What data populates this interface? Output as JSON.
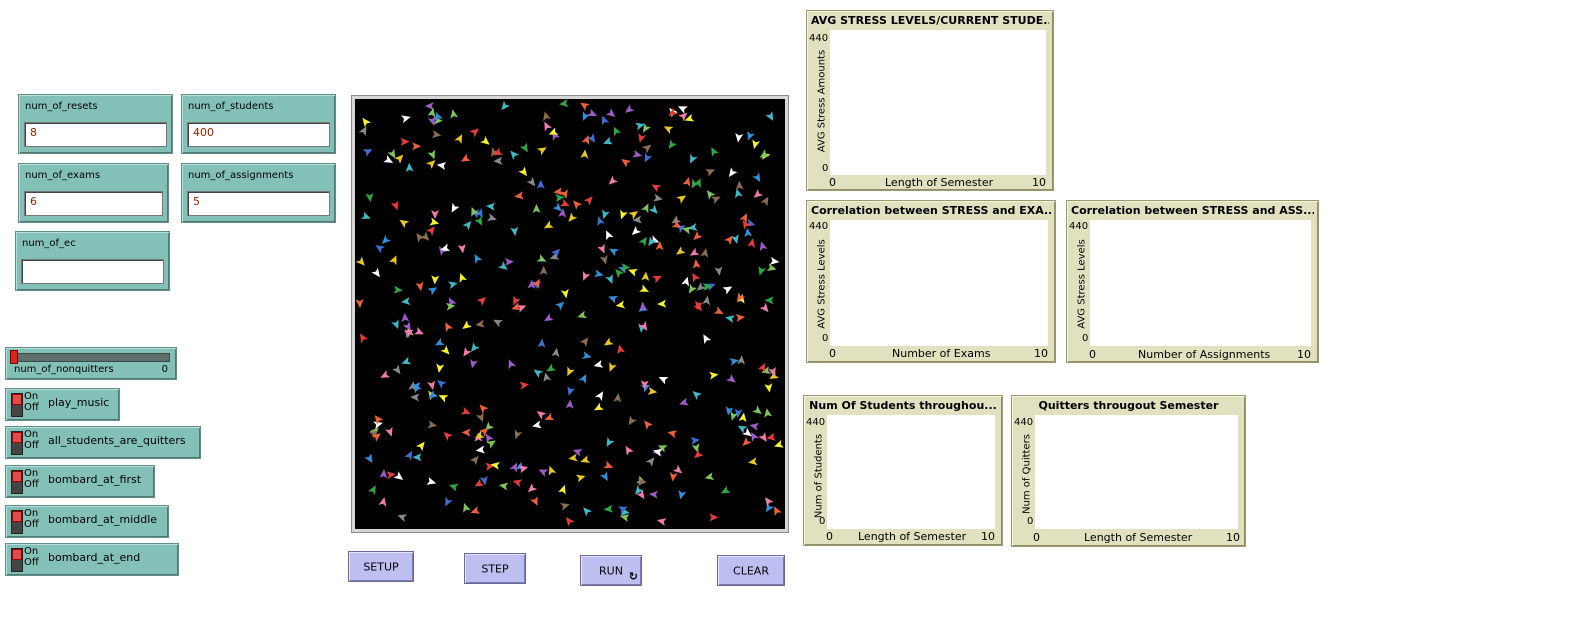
{
  "inputs": {
    "num_of_resets": {
      "label": "num_of_resets",
      "value": "8"
    },
    "num_of_students": {
      "label": "num_of_students",
      "value": "400"
    },
    "num_of_exams": {
      "label": "num_of_exams",
      "value": "6"
    },
    "num_of_assignments": {
      "label": "num_of_assignments",
      "value": "5"
    },
    "num_of_ec": {
      "label": "num_of_ec",
      "value": ""
    }
  },
  "slider": {
    "label": "num_of_nonquitters",
    "value": "0"
  },
  "switches": [
    {
      "label": "play_music",
      "on": "On",
      "off": "Off",
      "state": "off"
    },
    {
      "label": "all_students_are_quitters",
      "on": "On",
      "off": "Off",
      "state": "off"
    },
    {
      "label": "bombard_at_first",
      "on": "On",
      "off": "Off",
      "state": "off"
    },
    {
      "label": "bombard_at_middle",
      "on": "On",
      "off": "Off",
      "state": "off"
    },
    {
      "label": "bombard_at_end",
      "on": "On",
      "off": "Off",
      "state": "off"
    }
  ],
  "buttons": {
    "setup": "SETUP",
    "step": "STEP",
    "run": "RUN",
    "run_forever_icon": "↻",
    "clear": "CLEAR"
  },
  "world": {
    "background": "#000000",
    "agent_colors": [
      "#f2603a",
      "#e8c81e",
      "#3b6fd1",
      "#2da845",
      "#9c5bc8",
      "#3fb9c6",
      "#f07bb0",
      "#8b6e4f",
      "#888888",
      "#f5f52a",
      "#7dc55a",
      "#e63b3b",
      "#2f8fd8",
      "#ffffff"
    ],
    "agent_count": 400
  },
  "plots": {
    "avg_stress": {
      "title": "AVG STRESS LEVELS/CURRENT STUDE...",
      "ylabel": "AVG Stress Amounts",
      "xlabel": "Length of Semester",
      "ymax": "440",
      "ymin": "0",
      "xmin": "0",
      "xmax": "10"
    },
    "stress_exams": {
      "title": "Correlation between STRESS and EXA...",
      "ylabel": "AVG Stress Levels",
      "xlabel": "Number of Exams",
      "ymax": "440",
      "ymin": "0",
      "xmin": "0",
      "xmax": "10"
    },
    "stress_assignments": {
      "title": "Correlation between STRESS and ASS...",
      "ylabel": "AVG Stress Levels",
      "xlabel": "Number of Assignments",
      "ymax": "440",
      "ymin": "0",
      "xmin": "0",
      "xmax": "10"
    },
    "num_students": {
      "title": "Num Of Students throughou...",
      "ylabel": "Num of Students",
      "xlabel": "Length of Semester",
      "ymax": "440",
      "ymin": "0",
      "xmin": "0",
      "xmax": "10"
    },
    "quitters": {
      "title": "Quitters througout Semester",
      "ylabel": "Num of Quitters",
      "xlabel": "Length of Semester",
      "ymax": "440",
      "ymin": "0",
      "xmin": "0",
      "xmax": "10"
    }
  }
}
